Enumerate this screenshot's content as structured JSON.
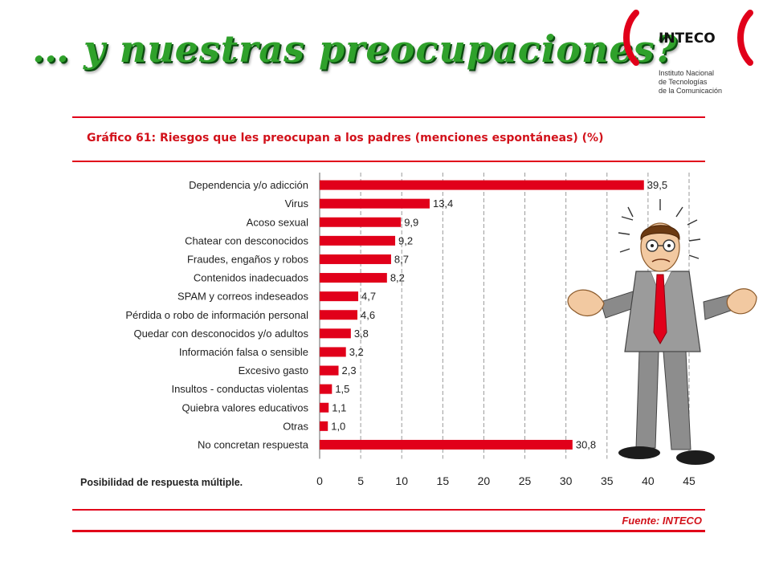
{
  "headline": "… y nuestras preocupaciones?",
  "logo": {
    "name": "INTECO",
    "sub1": "Instituto Nacional",
    "sub2": "de Tecnologías",
    "sub3": "de la Comunicación"
  },
  "colors": {
    "bar": "#e1001a",
    "accent_red": "#d2121b",
    "headline_green": "#2fa12b"
  },
  "chart_data": {
    "type": "bar",
    "orientation": "horizontal",
    "title": "Gráfico 61: Riesgos que les preocupan a los padres (menciones espontáneas) (%)",
    "categories": [
      "Dependencia y/o adicción",
      "Virus",
      "Acoso sexual",
      "Chatear con desconocidos",
      "Fraudes, engaños y robos",
      "Contenidos inadecuados",
      "SPAM y correos indeseados",
      "Pérdida o robo de información personal",
      "Quedar con desconocidos y/o adultos",
      "Información falsa o sensible",
      "Excesivo gasto",
      "Insultos - conductas violentas",
      "Quiebra valores educativos",
      "Otras",
      "No concretan respuesta"
    ],
    "values": [
      39.5,
      13.4,
      9.9,
      9.2,
      8.7,
      8.2,
      4.7,
      4.6,
      3.8,
      3.2,
      2.3,
      1.5,
      1.1,
      1.0,
      30.8
    ],
    "value_labels": [
      "39,5",
      "13,4",
      "9,9",
      "9,2",
      "8,7",
      "8,2",
      "4,7",
      "4,6",
      "3,8",
      "3,2",
      "2,3",
      "1,5",
      "1,1",
      "1,0",
      "30,8"
    ],
    "xticks": [
      0,
      5,
      10,
      15,
      20,
      25,
      30,
      35,
      40,
      45
    ],
    "xlim": [
      0,
      45
    ],
    "grid": true,
    "note": "Posibilidad de respuesta múltiple.",
    "source": "Fuente: INTECO"
  }
}
